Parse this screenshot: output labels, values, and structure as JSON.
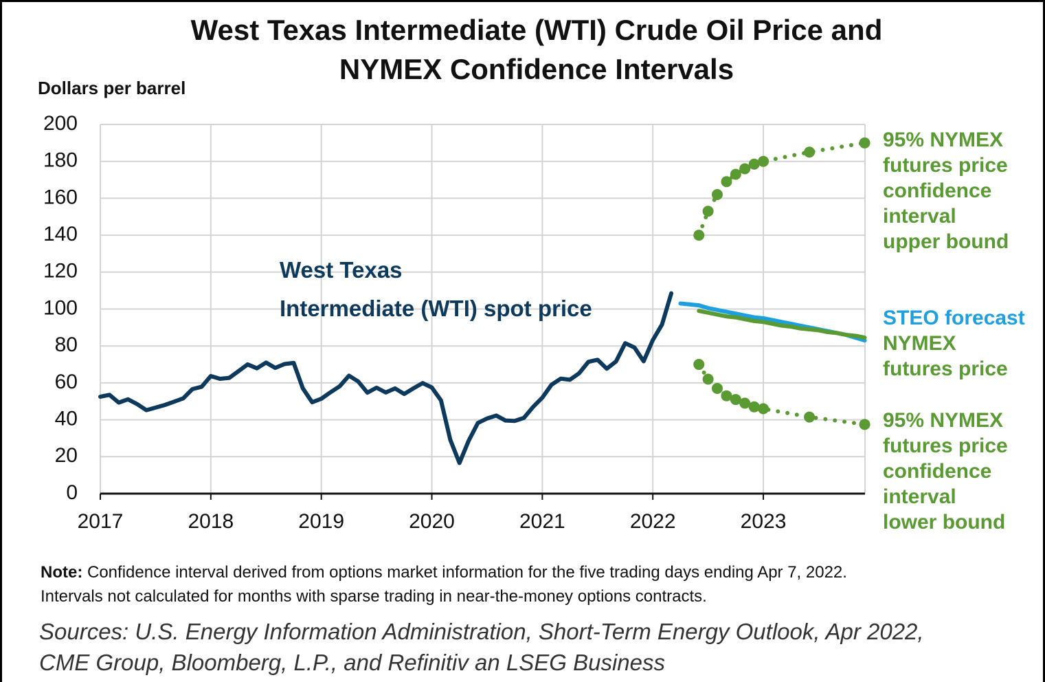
{
  "chart_data": {
    "type": "line",
    "title": "West Texas Intermediate (WTI) Crude Oil Price and\nNYMEX Confidence Intervals",
    "y_axis_label": "Dollars per barrel",
    "note_label": "Note:",
    "note": "Confidence interval derived from options market information for the five trading days ending Apr 7, 2022.\nIntervals not calculated for months with sparse trading in near-the-money options contracts.",
    "sources": "Sources: U.S. Energy Information Administration, Short-Term Energy Outlook, Apr 2022,\nCME Group, Bloomberg, L.P., and Refinitiv an LSEG Business",
    "xlim": [
      2017,
      2023.92
    ],
    "xticks": [
      2017,
      2018,
      2019,
      2020,
      2021,
      2022,
      2023
    ],
    "ylim": [
      0,
      200
    ],
    "yticks": [
      0,
      20,
      40,
      60,
      80,
      100,
      120,
      140,
      160,
      180,
      200
    ],
    "grid": true,
    "series": [
      {
        "name": "West Texas\nIntermediate (WTI) spot price",
        "color": "#0d3a5c",
        "style": "solid",
        "x": [
          2017,
          2017.083,
          2017.167,
          2017.25,
          2017.333,
          2017.417,
          2017.5,
          2017.583,
          2017.667,
          2017.75,
          2017.833,
          2017.917,
          2018,
          2018.083,
          2018.167,
          2018.25,
          2018.333,
          2018.417,
          2018.5,
          2018.583,
          2018.667,
          2018.75,
          2018.833,
          2018.917,
          2019,
          2019.083,
          2019.167,
          2019.25,
          2019.333,
          2019.417,
          2019.5,
          2019.583,
          2019.667,
          2019.75,
          2019.833,
          2019.917,
          2020,
          2020.083,
          2020.167,
          2020.25,
          2020.333,
          2020.417,
          2020.5,
          2020.583,
          2020.667,
          2020.75,
          2020.833,
          2020.917,
          2021,
          2021.083,
          2021.167,
          2021.25,
          2021.333,
          2021.417,
          2021.5,
          2021.583,
          2021.667,
          2021.75,
          2021.833,
          2021.917,
          2022,
          2022.083,
          2022.167
        ],
        "values": [
          52.5,
          53.5,
          49.3,
          51.1,
          48.5,
          45.2,
          46.6,
          48.0,
          49.8,
          51.6,
          56.6,
          57.9,
          63.7,
          62.2,
          62.7,
          66.3,
          70.0,
          67.9,
          71.0,
          68.1,
          70.2,
          70.8,
          57.0,
          49.5,
          51.4,
          54.9,
          58.2,
          63.9,
          60.8,
          54.7,
          57.4,
          54.8,
          57.0,
          54.0,
          57.0,
          59.9,
          57.5,
          50.5,
          29.2,
          16.6,
          28.6,
          38.3,
          40.7,
          42.3,
          39.6,
          39.4,
          41.0,
          47.0,
          52.0,
          59.0,
          62.3,
          61.7,
          65.2,
          71.4,
          72.5,
          67.7,
          71.6,
          81.5,
          79.2,
          71.7,
          83.2,
          91.6,
          108.5
        ]
      },
      {
        "name": "STEO forecast",
        "color": "#1ea0e0",
        "style": "solid",
        "x": [
          2022.25,
          2022.333,
          2022.417,
          2022.5,
          2022.583,
          2022.667,
          2022.75,
          2022.833,
          2022.917,
          2023,
          2023.083,
          2023.167,
          2023.25,
          2023.333,
          2023.417,
          2023.5,
          2023.583,
          2023.667,
          2023.75,
          2023.833,
          2023.917
        ],
        "values": [
          103,
          102.5,
          102,
          100.5,
          99.5,
          98.5,
          97.5,
          96.5,
          95.5,
          95,
          94,
          93,
          92,
          91,
          90,
          89,
          88,
          87,
          86,
          84.5,
          83
        ]
      },
      {
        "name": "NYMEX\nfutures price",
        "color": "#5a9a32",
        "style": "solid",
        "x": [
          2022.417,
          2022.5,
          2022.583,
          2022.667,
          2022.75,
          2022.833,
          2022.917,
          2023,
          2023.083,
          2023.167,
          2023.25,
          2023.333,
          2023.417,
          2023.5,
          2023.583,
          2023.667,
          2023.75,
          2023.833,
          2023.917
        ],
        "values": [
          99,
          98,
          97,
          96,
          95.5,
          94.5,
          93.5,
          93,
          92,
          91,
          90.5,
          89.5,
          89,
          88.5,
          87.5,
          87,
          86,
          85.5,
          84.5
        ]
      },
      {
        "name": "95% NYMEX\nfutures price\nconfidence\ninterval\nupper bound",
        "color": "#5a9a32",
        "style": "dotted",
        "x": [
          2022.417,
          2022.5,
          2022.583,
          2022.667,
          2022.75,
          2022.833,
          2022.917,
          2023,
          2023.417,
          2023.917
        ],
        "values": [
          140,
          153,
          162,
          169,
          173,
          176,
          178.5,
          180,
          185,
          190
        ]
      },
      {
        "name": "95% NYMEX\nfutures price\nconfidence\ninterval\nlower bound",
        "color": "#5a9a32",
        "style": "dotted",
        "x": [
          2022.417,
          2022.5,
          2022.583,
          2022.667,
          2022.75,
          2022.833,
          2022.917,
          2023,
          2023.417,
          2023.917
        ],
        "values": [
          70,
          62,
          57,
          53,
          51,
          49,
          47,
          46,
          41.5,
          37.5
        ]
      }
    ]
  }
}
